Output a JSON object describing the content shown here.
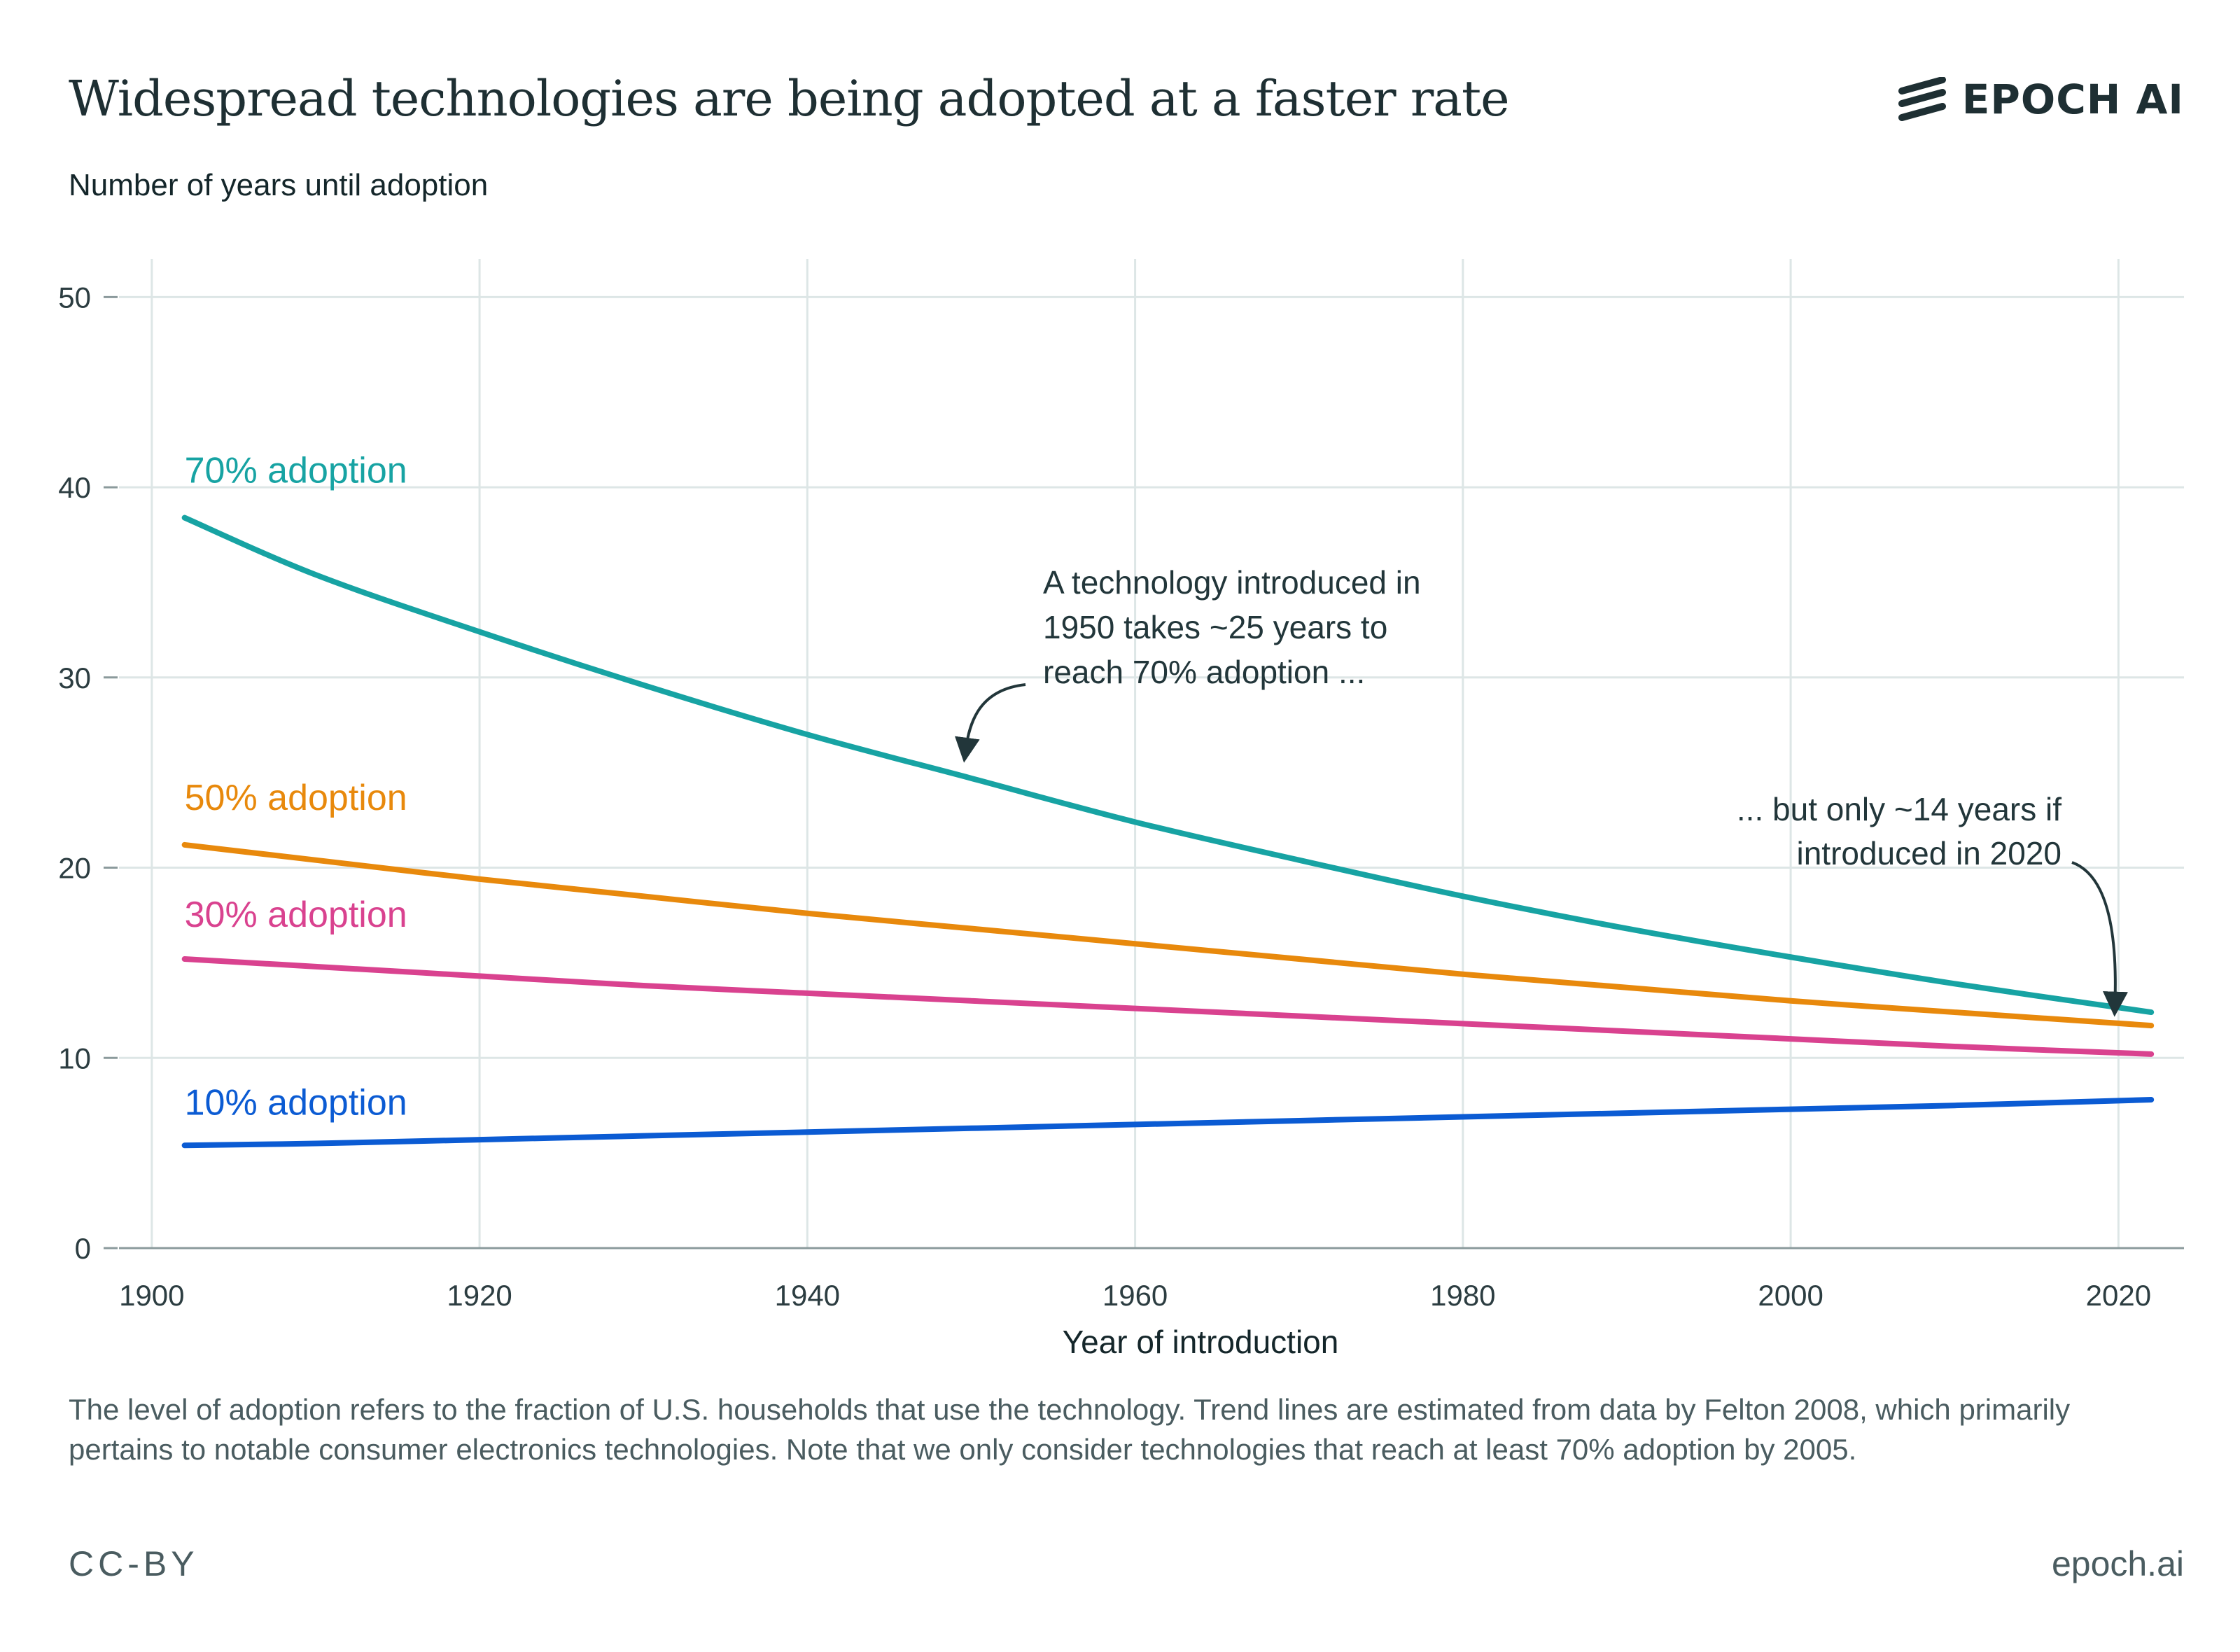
{
  "header": {
    "title": "Widespread technologies are being adopted at a faster rate",
    "logo_text": "EPOCH AI",
    "logo_icon": "epoch-stripes-icon"
  },
  "footer": {
    "caption": "The level of adoption refers to the fraction of U.S. households that use the technology. Trend lines are estimated from data by Felton 2008, which primarily pertains to notable consumer electronics technologies. Note that we only consider technologies that reach at least 70% adoption by 2005.",
    "license": "CC-BY",
    "site": "epoch.ai"
  },
  "colors": {
    "adoption_70": "#17a3a3",
    "adoption_50": "#e8890c",
    "adoption_30": "#d9428f",
    "adoption_10": "#0b5bd3",
    "grid": "#dde6e6",
    "text": "#1f3135"
  },
  "chart_data": {
    "type": "line",
    "title": "Widespread technologies are being adopted at a faster rate",
    "xlabel": "Year of introduction",
    "ylabel": "Number of years until adoption",
    "xlim": [
      1898,
      2024
    ],
    "ylim": [
      0,
      52
    ],
    "x_ticks": [
      1900,
      1920,
      1940,
      1960,
      1980,
      2000,
      2020
    ],
    "y_ticks": [
      0,
      10,
      20,
      30,
      40,
      50
    ],
    "grid": true,
    "x": [
      1902,
      1910,
      1920,
      1930,
      1940,
      1950,
      1960,
      1970,
      1980,
      1990,
      2000,
      2010,
      2022
    ],
    "series": [
      {
        "name": "70% adoption",
        "color_key": "adoption_70",
        "values": [
          38.4,
          35.4,
          32.4,
          29.6,
          27.0,
          24.7,
          22.4,
          20.4,
          18.5,
          16.8,
          15.3,
          13.9,
          12.4
        ]
      },
      {
        "name": "50% adoption",
        "color_key": "adoption_50",
        "values": [
          21.2,
          20.4,
          19.4,
          18.5,
          17.6,
          16.8,
          16.0,
          15.2,
          14.4,
          13.7,
          13.0,
          12.4,
          11.7
        ]
      },
      {
        "name": "30% adoption",
        "color_key": "adoption_30",
        "values": [
          15.2,
          14.8,
          14.3,
          13.8,
          13.4,
          13.0,
          12.6,
          12.2,
          11.8,
          11.4,
          11.0,
          10.6,
          10.2
        ]
      },
      {
        "name": "10% adoption",
        "color_key": "adoption_10",
        "values": [
          5.4,
          5.5,
          5.7,
          5.9,
          6.1,
          6.3,
          6.5,
          6.7,
          6.9,
          7.1,
          7.3,
          7.5,
          7.8
        ]
      }
    ],
    "annotations": [
      {
        "lines": [
          "A technology introduced in",
          "1950 takes ~25 years to",
          "reach 70% adoption ..."
        ],
        "points_to": {
          "x": 1950,
          "y": 24.7
        }
      },
      {
        "lines": [
          "... but only ~14 years if",
          "introduced in 2020"
        ],
        "points_to": {
          "x": 2020,
          "y": 12.6
        }
      }
    ]
  }
}
